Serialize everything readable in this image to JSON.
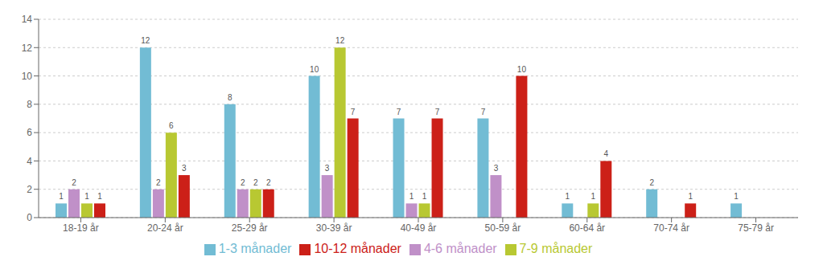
{
  "chart_data": {
    "type": "bar",
    "categories": [
      "18-19 år",
      "20-24 år",
      "25-29 år",
      "30-39 år",
      "40-49 år",
      "50-59 år",
      "60-64 år",
      "70-74 år",
      "75-79 år"
    ],
    "series": [
      {
        "name": "1-3 månader",
        "color": "#72bcd4",
        "values": [
          1,
          12,
          8,
          10,
          7,
          7,
          1,
          2,
          1
        ]
      },
      {
        "name": "4-6 månader",
        "color": "#c090c8",
        "values": [
          2,
          2,
          2,
          3,
          1,
          3,
          0,
          0,
          0
        ]
      },
      {
        "name": "7-9 månader",
        "color": "#b8c832",
        "values": [
          1,
          6,
          2,
          12,
          1,
          0,
          1,
          0,
          0
        ]
      },
      {
        "name": "10-12 månader",
        "color": "#cc2018",
        "values": [
          1,
          3,
          2,
          7,
          7,
          10,
          4,
          1,
          0
        ]
      }
    ],
    "ylim": [
      0,
      14
    ],
    "yticks": [
      0,
      2,
      4,
      6,
      8,
      10,
      12,
      14
    ],
    "grid": true,
    "legend": "bottom",
    "data_labels": true
  }
}
